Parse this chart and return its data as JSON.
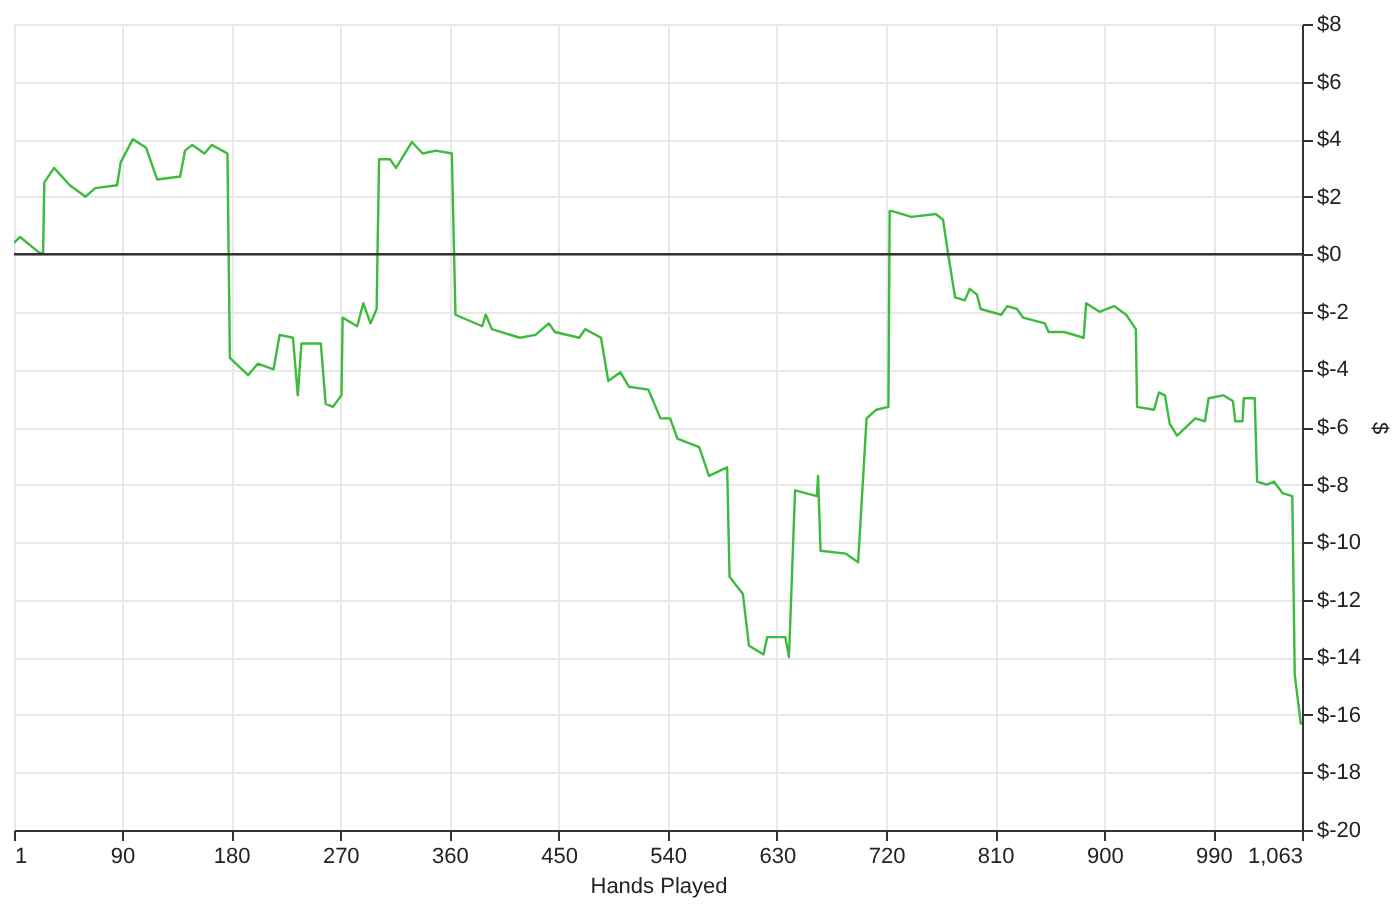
{
  "chart_data": {
    "type": "line",
    "xlabel": "Hands Played",
    "ylabel": "$",
    "xlim": [
      1,
      1063
    ],
    "xticks": [
      1,
      90,
      180,
      270,
      360,
      450,
      540,
      630,
      720,
      810,
      900,
      990,
      {
        "value": 1063,
        "label": "1,063"
      }
    ],
    "ylim": [
      -20,
      8
    ],
    "yticks": [
      {
        "value": 8,
        "label": "$8"
      },
      {
        "value": 6,
        "label": "$6"
      },
      {
        "value": 4,
        "label": "$4"
      },
      {
        "value": 2,
        "label": "$2"
      },
      {
        "value": 0,
        "label": "$0"
      },
      {
        "value": -2,
        "label": "$-2"
      },
      {
        "value": -4,
        "label": "$-4"
      },
      {
        "value": -6,
        "label": "$-6"
      },
      {
        "value": -8,
        "label": "$-8"
      },
      {
        "value": -10,
        "label": "$-10"
      },
      {
        "value": -12,
        "label": "$-12"
      },
      {
        "value": -14,
        "label": "$-14"
      },
      {
        "value": -16,
        "label": "$-16"
      },
      {
        "value": -18,
        "label": "$-18"
      },
      {
        "value": -20,
        "label": "$-20"
      }
    ],
    "grid": true,
    "marker": "none",
    "line_style": "solid",
    "ref_lines": [
      {
        "axis": "y",
        "value": 0,
        "color": "#333333"
      }
    ],
    "series": [
      {
        "color": "#3dbb3d",
        "x": [
          1,
          6,
          22,
          25,
          26,
          34,
          47,
          60,
          68,
          86,
          89,
          99,
          110,
          119,
          138,
          142,
          148,
          158,
          164,
          177,
          179,
          194,
          202,
          215,
          220,
          231,
          235,
          238,
          254,
          258,
          264,
          271,
          272,
          284,
          289,
          295,
          300,
          302,
          311,
          316,
          329,
          338,
          349,
          362,
          365,
          387,
          390,
          395,
          418,
          431,
          442,
          447,
          467,
          472,
          485,
          491,
          501,
          508,
          524,
          534,
          542,
          548,
          566,
          574,
          589,
          591,
          602,
          607,
          619,
          622,
          637,
          640,
          645,
          663,
          664,
          666,
          687,
          697,
          704,
          712,
          722,
          723,
          725,
          741,
          761,
          767,
          772,
          777,
          785,
          789,
          795,
          798,
          815,
          820,
          828,
          833,
          851,
          854,
          867,
          883,
          885,
          896,
          908,
          918,
          926,
          927,
          941,
          945,
          950,
          954,
          960,
          975,
          983,
          986,
          998,
          1006,
          1008,
          1014,
          1015,
          1024,
          1026,
          1034,
          1040,
          1047,
          1055,
          1057,
          1062,
          1063
        ],
        "values": [
          0.4,
          0.6,
          0.05,
          0.05,
          2.5,
          3.0,
          2.4,
          2.0,
          2.3,
          2.4,
          3.2,
          4.0,
          3.7,
          2.6,
          2.7,
          3.6,
          3.8,
          3.5,
          3.8,
          3.5,
          -3.6,
          -4.2,
          -3.8,
          -4.0,
          -2.8,
          -2.9,
          -4.9,
          -3.1,
          -3.1,
          -5.2,
          -5.3,
          -4.9,
          -2.2,
          -2.5,
          -1.7,
          -2.4,
          -1.9,
          3.3,
          3.3,
          3.0,
          3.9,
          3.5,
          3.6,
          3.5,
          -2.1,
          -2.5,
          -2.1,
          -2.6,
          -2.9,
          -2.8,
          -2.4,
          -2.7,
          -2.9,
          -2.6,
          -2.9,
          -4.4,
          -4.1,
          -4.6,
          -4.7,
          -5.7,
          -5.7,
          -6.4,
          -6.7,
          -7.7,
          -7.4,
          -11.2,
          -11.8,
          -13.6,
          -13.9,
          -13.3,
          -13.3,
          -14.0,
          -8.2,
          -8.4,
          -7.7,
          -10.3,
          -10.4,
          -10.7,
          -5.7,
          -5.4,
          -5.3,
          1.5,
          1.5,
          1.3,
          1.4,
          1.2,
          -0.2,
          -1.5,
          -1.6,
          -1.2,
          -1.4,
          -1.9,
          -2.1,
          -1.8,
          -1.9,
          -2.2,
          -2.4,
          -2.7,
          -2.7,
          -2.9,
          -1.7,
          -2.0,
          -1.8,
          -2.1,
          -2.6,
          -5.3,
          -5.4,
          -4.8,
          -4.9,
          -5.9,
          -6.3,
          -5.7,
          -5.8,
          -5.0,
          -4.9,
          -5.1,
          -5.8,
          -5.8,
          -5.0,
          -5.0,
          -7.9,
          -8.0,
          -7.9,
          -8.3,
          -8.4,
          -14.6,
          -16.3,
          -16.3
        ]
      }
    ]
  }
}
